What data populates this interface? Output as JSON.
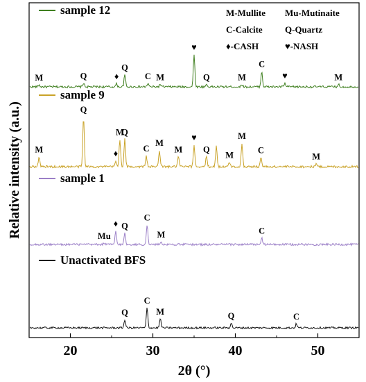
{
  "chart_data": {
    "type": "line",
    "xlabel": "2θ (°)",
    "ylabel": "Relative intensity (a.u.)",
    "xlim": [
      15,
      55
    ],
    "x_ticks": [
      20,
      30,
      40,
      50
    ],
    "grid": false,
    "y_scale": "stacked offset, arbitrary units",
    "legend_items": [
      {
        "text": "M-Mullite"
      },
      {
        "text": "Mu-Mutinaite"
      },
      {
        "text": "C-Calcite"
      },
      {
        "text": "Q-Quartz"
      },
      {
        "text": "♦-CASH"
      },
      {
        "text": "♥-NASH"
      }
    ],
    "series": [
      {
        "name": "sample 12",
        "color": "#3f7f1f",
        "peaks": [
          {
            "x": 16.2,
            "h": 0.04,
            "label": "M"
          },
          {
            "x": 21.6,
            "h": 0.08,
            "label": "Q"
          },
          {
            "x": 25.6,
            "h": 0.06,
            "label": "♦"
          },
          {
            "x": 26.6,
            "h": 0.25,
            "label": "Q"
          },
          {
            "x": 29.4,
            "h": 0.07,
            "label": "C"
          },
          {
            "x": 30.9,
            "h": 0.05,
            "label": "M"
          },
          {
            "x": 35.0,
            "h": 0.66,
            "label": "♥"
          },
          {
            "x": 36.5,
            "h": 0.05,
            "label": "Q"
          },
          {
            "x": 40.8,
            "h": 0.05,
            "label": "M"
          },
          {
            "x": 43.2,
            "h": 0.32,
            "label": "C"
          },
          {
            "x": 46.0,
            "h": 0.07,
            "label": "♥"
          },
          {
            "x": 52.5,
            "h": 0.05,
            "label": "M"
          }
        ]
      },
      {
        "name": "sample 9",
        "color": "#c9a227",
        "peaks": [
          {
            "x": 16.2,
            "h": 0.2,
            "label": "M"
          },
          {
            "x": 21.6,
            "h": 1.0,
            "label": "Q"
          },
          {
            "x": 25.5,
            "h": 0.11,
            "label": "♦"
          },
          {
            "x": 26.0,
            "h": 0.55,
            "label": "M"
          },
          {
            "x": 26.6,
            "h": 0.55,
            "label": "Q"
          },
          {
            "x": 29.2,
            "h": 0.22,
            "label": "C"
          },
          {
            "x": 30.8,
            "h": 0.33,
            "label": "M"
          },
          {
            "x": 33.1,
            "h": 0.2,
            "label": "M"
          },
          {
            "x": 35.0,
            "h": 0.43,
            "label": "♥"
          },
          {
            "x": 36.5,
            "h": 0.2,
            "label": "Q"
          },
          {
            "x": 37.7,
            "h": 0.42,
            "label": ""
          },
          {
            "x": 39.3,
            "h": 0.09,
            "label": "M"
          },
          {
            "x": 40.8,
            "h": 0.47,
            "label": "M"
          },
          {
            "x": 43.1,
            "h": 0.19,
            "label": "C"
          },
          {
            "x": 49.8,
            "h": 0.06,
            "label": "M"
          }
        ]
      },
      {
        "name": "sample 1",
        "color": "#9b7fc7",
        "peaks": [
          {
            "x": 24.1,
            "h": 0.03,
            "label": "Mu"
          },
          {
            "x": 25.5,
            "h": 0.28,
            "label": "♦"
          },
          {
            "x": 26.6,
            "h": 0.24,
            "label": "Q"
          },
          {
            "x": 29.3,
            "h": 0.42,
            "label": "C"
          },
          {
            "x": 31.0,
            "h": 0.06,
            "label": "M"
          },
          {
            "x": 43.2,
            "h": 0.14,
            "label": "C"
          }
        ]
      },
      {
        "name": "Unactivated BFS",
        "color": "#111111",
        "peaks": [
          {
            "x": 26.6,
            "h": 0.2,
            "label": "Q"
          },
          {
            "x": 29.3,
            "h": 0.48,
            "label": "C"
          },
          {
            "x": 30.9,
            "h": 0.22,
            "label": "M"
          },
          {
            "x": 39.5,
            "h": 0.12,
            "label": "Q"
          },
          {
            "x": 47.4,
            "h": 0.1,
            "label": "C"
          }
        ]
      }
    ]
  }
}
